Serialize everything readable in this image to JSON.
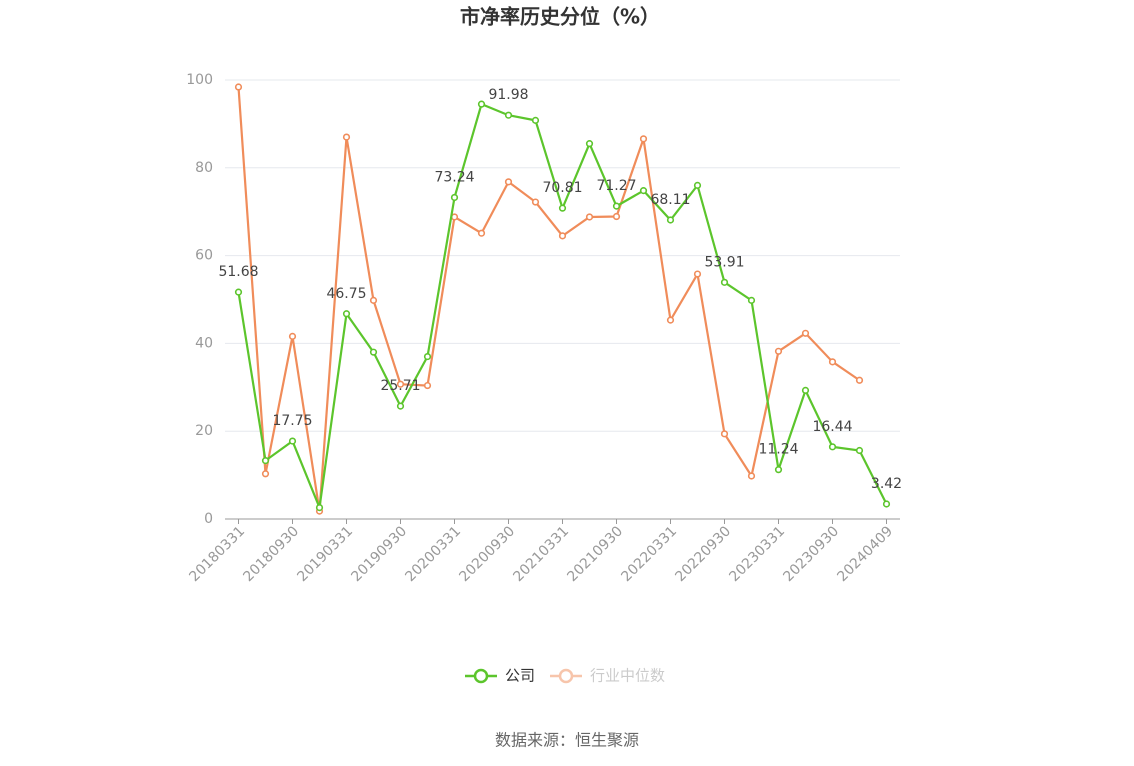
{
  "chart_data": {
    "type": "line",
    "title": "市净率历史分位（%）",
    "categories": [
      "20180331",
      null,
      "20180930",
      null,
      "20190331",
      null,
      "20190930",
      null,
      "20200331",
      null,
      "20200930",
      null,
      "20210331",
      null,
      "20210930",
      null,
      "20220331",
      null,
      "20220930",
      null,
      "20230331",
      null,
      "20230930",
      null,
      "20240409"
    ],
    "series": [
      {
        "name": "公司",
        "color": "#5cc52c",
        "values": [
          51.68,
          13.3,
          17.75,
          2.6,
          46.75,
          38.0,
          25.71,
          37.0,
          73.24,
          94.5,
          91.98,
          90.8,
          70.81,
          85.5,
          71.27,
          74.8,
          68.11,
          76.0,
          53.91,
          49.8,
          11.24,
          29.3,
          16.44,
          15.6,
          3.42
        ]
      },
      {
        "name": "行业中位数",
        "color": "#f08c5a",
        "values": [
          98.4,
          10.3,
          41.6,
          1.8,
          87.0,
          49.8,
          30.7,
          30.4,
          68.8,
          65.1,
          76.8,
          72.2,
          64.5,
          68.8,
          68.9,
          86.6,
          45.3,
          55.8,
          19.4,
          9.8,
          38.2,
          42.3,
          35.8,
          31.6,
          null
        ]
      }
    ],
    "ylim": [
      0,
      100
    ],
    "yticks": [
      0,
      20,
      40,
      60,
      80,
      100
    ],
    "grid": true,
    "source": "数据来源：恒生聚源"
  }
}
